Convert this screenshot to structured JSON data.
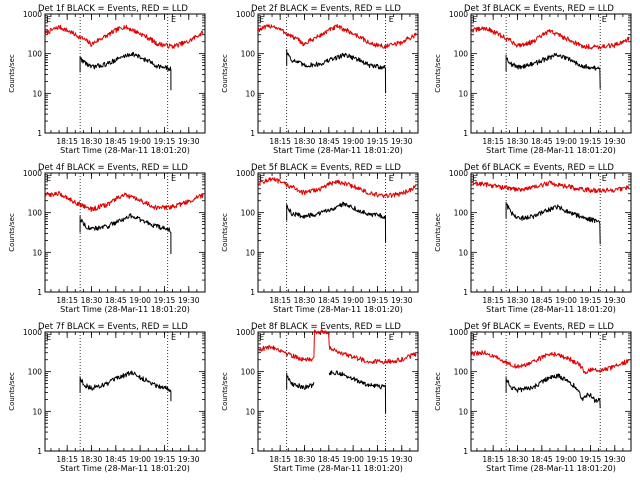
{
  "colors": {
    "events": "#000000",
    "lld": "#e00000",
    "axis": "#000000"
  },
  "common": {
    "ylabel": "Counts/sec",
    "xlabel": "Start Time (28-Mar-11 18:01:20)",
    "xtick_labels": [
      "18:15",
      "18:30",
      "18:45",
      "19:00",
      "19:15",
      "19:30"
    ],
    "xtick_minutes": [
      15,
      30,
      45,
      60,
      75,
      90
    ],
    "ytick_labels": [
      "1",
      "10",
      "100",
      "1000"
    ],
    "ytick_values": [
      1,
      10,
      100,
      1000
    ],
    "xlim_minutes": [
      1.33,
      100
    ],
    "ylim": [
      1,
      1000
    ],
    "marker_label": "E"
  },
  "chart_data": [
    {
      "type": "line",
      "title": "Det 1f BLACK = Events, RED = LLD",
      "xlabel": "Start Time (28-Mar-11 18:01:20)",
      "ylabel": "Counts/sec",
      "yscale": "log",
      "ylim": [
        1,
        1000
      ],
      "dotted_vlines_minutes": [
        23,
        77
      ],
      "markers": [
        {
          "label": "E",
          "x_minutes": 2
        },
        {
          "label": "E",
          "x_minutes": 79
        }
      ],
      "series": [
        {
          "name": "LLD",
          "color": "#e00000",
          "x_start": 1.5,
          "x_end": 99,
          "x": [
            1.5,
            10,
            20,
            30,
            40,
            50,
            60,
            70,
            80,
            90,
            99
          ],
          "y": [
            320,
            470,
            300,
            170,
            290,
            480,
            320,
            180,
            150,
            200,
            340
          ]
        },
        {
          "name": "Events",
          "color": "#000000",
          "x_start": 23,
          "x_end": 79,
          "x": [
            23,
            26,
            30,
            40,
            50,
            55,
            60,
            70,
            79
          ],
          "y": [
            75,
            60,
            45,
            55,
            85,
            100,
            80,
            50,
            40
          ],
          "end_drop": 12
        }
      ]
    },
    {
      "type": "line",
      "title": "Det 2f BLACK = Events, RED = LLD",
      "xlabel": "Start Time (28-Mar-11 18:01:20)",
      "ylabel": "Counts/sec",
      "yscale": "log",
      "ylim": [
        1,
        1000
      ],
      "dotted_vlines_minutes": [
        19,
        80
      ],
      "markers": [
        {
          "label": "E",
          "x_minutes": 2
        },
        {
          "label": "E",
          "x_minutes": 82
        }
      ],
      "series": [
        {
          "name": "LLD",
          "color": "#e00000",
          "x_start": 1.5,
          "x_end": 99,
          "x": [
            1.5,
            10,
            20,
            30,
            40,
            50,
            60,
            70,
            80,
            90,
            99
          ],
          "y": [
            400,
            510,
            300,
            170,
            290,
            480,
            320,
            180,
            150,
            190,
            300
          ]
        },
        {
          "name": "Events",
          "color": "#000000",
          "x_start": 19,
          "x_end": 80,
          "x": [
            19,
            22,
            30,
            40,
            50,
            55,
            60,
            70,
            80
          ],
          "y": [
            110,
            70,
            50,
            55,
            80,
            95,
            80,
            50,
            45
          ],
          "end_drop": 10
        }
      ]
    },
    {
      "type": "line",
      "title": "Det 3f BLACK = Events, RED = LLD",
      "xlabel": "Start Time (28-Mar-11 18:01:20)",
      "ylabel": "Counts/sec",
      "yscale": "log",
      "ylim": [
        1,
        1000
      ],
      "dotted_vlines_minutes": [
        23,
        81
      ],
      "markers": [
        {
          "label": "E",
          "x_minutes": 2
        },
        {
          "label": "E",
          "x_minutes": 82
        }
      ],
      "series": [
        {
          "name": "LLD",
          "color": "#e00000",
          "x_start": 1.5,
          "x_end": 99,
          "x": [
            1.5,
            10,
            20,
            30,
            40,
            50,
            60,
            70,
            80,
            90,
            99
          ],
          "y": [
            380,
            440,
            280,
            160,
            200,
            370,
            240,
            150,
            150,
            160,
            240
          ]
        },
        {
          "name": "Events",
          "color": "#000000",
          "x_start": 23,
          "x_end": 81,
          "x": [
            23,
            26,
            30,
            40,
            50,
            55,
            60,
            70,
            81
          ],
          "y": [
            80,
            55,
            45,
            55,
            80,
            95,
            75,
            50,
            40
          ],
          "end_drop": 13
        }
      ]
    },
    {
      "type": "line",
      "title": "Det 4f BLACK = Events, RED = LLD",
      "xlabel": "Start Time (28-Mar-11 18:01:20)",
      "ylabel": "Counts/sec",
      "yscale": "log",
      "ylim": [
        1,
        1000
      ],
      "dotted_vlines_minutes": [
        23,
        77
      ],
      "markers": [
        {
          "label": "E",
          "x_minutes": 2
        },
        {
          "label": "E",
          "x_minutes": 79
        }
      ],
      "series": [
        {
          "name": "LLD",
          "color": "#e00000",
          "x_start": 1.5,
          "x_end": 99,
          "x": [
            1.5,
            10,
            20,
            30,
            40,
            50,
            60,
            70,
            80,
            90,
            99
          ],
          "y": [
            280,
            300,
            180,
            120,
            160,
            280,
            200,
            130,
            140,
            190,
            280
          ]
        },
        {
          "name": "Events",
          "color": "#000000",
          "x_start": 23,
          "x_end": 79,
          "x": [
            23,
            26,
            30,
            40,
            50,
            55,
            60,
            70,
            79
          ],
          "y": [
            70,
            48,
            38,
            45,
            70,
            85,
            65,
            45,
            35
          ],
          "end_drop": 9
        }
      ]
    },
    {
      "type": "line",
      "title": "Det 5f BLACK = Events, RED = LLD",
      "xlabel": "Start Time (28-Mar-11 18:01:20)",
      "ylabel": "Counts/sec",
      "yscale": "log",
      "ylim": [
        1,
        1000
      ],
      "dotted_vlines_minutes": [
        19,
        80
      ],
      "markers": [
        {
          "label": "E",
          "x_minutes": 2
        },
        {
          "label": "E",
          "x_minutes": 82
        }
      ],
      "series": [
        {
          "name": "LLD",
          "color": "#e00000",
          "x_start": 1.5,
          "x_end": 99,
          "x": [
            1.5,
            10,
            20,
            30,
            40,
            50,
            60,
            70,
            80,
            90,
            99
          ],
          "y": [
            560,
            700,
            480,
            310,
            400,
            620,
            460,
            300,
            260,
            300,
            440
          ]
        },
        {
          "name": "Events",
          "color": "#000000",
          "x_start": 19,
          "x_end": 80,
          "x": [
            19,
            22,
            30,
            40,
            50,
            55,
            60,
            70,
            80
          ],
          "y": [
            140,
            95,
            80,
            95,
            140,
            170,
            130,
            90,
            80
          ],
          "end_drop": 18
        }
      ]
    },
    {
      "type": "line",
      "title": "Det 6f BLACK = Events, RED = LLD",
      "xlabel": "Start Time (28-Mar-11 18:01:20)",
      "ylabel": "Counts/sec",
      "yscale": "log",
      "ylim": [
        1,
        1000
      ],
      "dotted_vlines_minutes": [
        23,
        81
      ],
      "markers": [
        {
          "label": "E",
          "x_minutes": 2
        },
        {
          "label": "E",
          "x_minutes": 82
        }
      ],
      "series": [
        {
          "name": "LLD",
          "color": "#e00000",
          "x_start": 1.5,
          "x_end": 99,
          "x": [
            1.5,
            10,
            20,
            30,
            40,
            50,
            60,
            70,
            80,
            90,
            99
          ],
          "y": [
            560,
            520,
            440,
            380,
            430,
            560,
            460,
            380,
            360,
            370,
            430
          ]
        },
        {
          "name": "Events",
          "color": "#000000",
          "x_start": 23,
          "x_end": 81,
          "x": [
            23,
            26,
            30,
            40,
            50,
            55,
            60,
            70,
            81
          ],
          "y": [
            160,
            100,
            70,
            80,
            120,
            140,
            110,
            75,
            60
          ],
          "end_drop": 16
        }
      ]
    },
    {
      "type": "line",
      "title": "Det 7f BLACK = Events, RED = LLD",
      "xlabel": "Start Time (28-Mar-11 18:01:20)",
      "ylabel": "Counts/sec",
      "yscale": "log",
      "ylim": [
        1,
        1000
      ],
      "dotted_vlines_minutes": [
        23,
        77
      ],
      "markers": [
        {
          "label": "E",
          "x_minutes": 2
        },
        {
          "label": "E",
          "x_minutes": 79
        }
      ],
      "series": [
        {
          "name": "Events",
          "color": "#000000",
          "x_start": 23,
          "x_end": 79,
          "x": [
            23,
            26,
            30,
            40,
            50,
            55,
            60,
            70,
            79
          ],
          "y": [
            65,
            45,
            38,
            50,
            80,
            95,
            70,
            45,
            35
          ],
          "end_drop": 18
        }
      ]
    },
    {
      "type": "line",
      "title": "Det 8f BLACK = Events, RED = LLD",
      "xlabel": "Start Time (28-Mar-11 18:01:20)",
      "ylabel": "Counts/sec",
      "yscale": "log",
      "ylim": [
        1,
        1000
      ],
      "dotted_vlines_minutes": [
        19,
        80
      ],
      "markers": [
        {
          "label": "E",
          "x_minutes": 2
        },
        {
          "label": "E",
          "x_minutes": 82
        }
      ],
      "series": [
        {
          "name": "LLD",
          "color": "#e00000",
          "x_start": 1.5,
          "x_end": 99,
          "x": [
            1.5,
            10,
            20,
            30,
            35.9,
            36,
            44.9,
            45,
            50,
            60,
            70,
            80,
            90,
            99
          ],
          "y": [
            360,
            420,
            280,
            190,
            220,
            1000,
            1000,
            420,
            330,
            230,
            180,
            180,
            200,
            280
          ]
        },
        {
          "name": "Events",
          "color": "#000000",
          "x_start": 19,
          "x_end": 80,
          "gap": [
            36,
            45
          ],
          "x": [
            19,
            22,
            30,
            35,
            45,
            50,
            55,
            60,
            70,
            80
          ],
          "y": [
            80,
            50,
            40,
            45,
            95,
            95,
            80,
            65,
            45,
            40
          ],
          "end_drop": 9
        }
      ]
    },
    {
      "type": "line",
      "title": "Det 9f BLACK = Events, RED = LLD",
      "xlabel": "Start Time (28-Mar-11 18:01:20)",
      "ylabel": "Counts/sec",
      "yscale": "log",
      "ylim": [
        1,
        1000
      ],
      "dotted_vlines_minutes": [
        23,
        81
      ],
      "markers": [
        {
          "label": "E",
          "x_minutes": 2
        },
        {
          "label": "E",
          "x_minutes": 82
        }
      ],
      "series": [
        {
          "name": "LLD",
          "color": "#e00000",
          "x_start": 1.5,
          "x_end": 99,
          "x": [
            1.5,
            10,
            20,
            30,
            40,
            50,
            60,
            68,
            72,
            76,
            80,
            90,
            99
          ],
          "y": [
            280,
            300,
            190,
            130,
            170,
            290,
            230,
            150,
            90,
            120,
            100,
            130,
            190
          ]
        },
        {
          "name": "Events",
          "color": "#000000",
          "x_start": 23,
          "x_end": 81,
          "x": [
            23,
            26,
            30,
            40,
            50,
            55,
            60,
            66,
            70,
            74,
            78,
            81
          ],
          "y": [
            65,
            40,
            34,
            40,
            70,
            80,
            60,
            40,
            20,
            28,
            18,
            22
          ],
          "end_drop": 12
        }
      ]
    }
  ]
}
